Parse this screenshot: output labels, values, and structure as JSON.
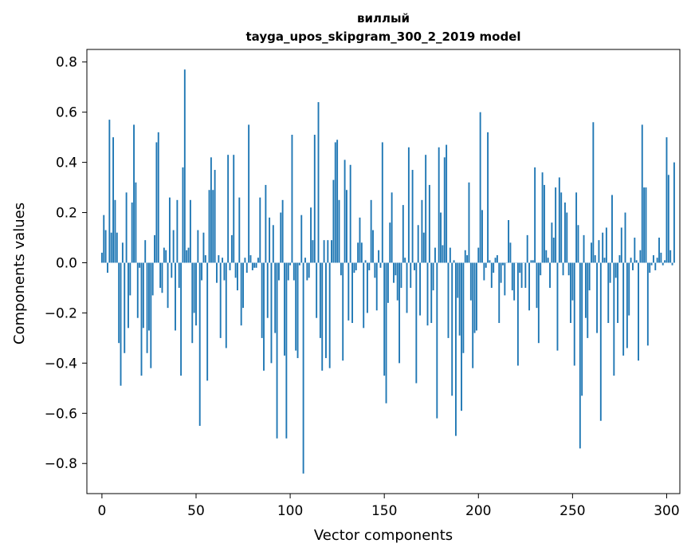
{
  "chart_data": {
    "type": "bar",
    "title": "виллый",
    "subtitle": "tayga_upos_skipgram_300_2_2019 model",
    "xlabel": "Vector components",
    "ylabel": "Components values",
    "xlim": [
      -8,
      307
    ],
    "ylim": [
      -0.92,
      0.85
    ],
    "xticks": [
      0,
      50,
      100,
      150,
      200,
      250,
      300
    ],
    "yticks": [
      -0.8,
      -0.6,
      -0.4,
      -0.2,
      0.0,
      0.2,
      0.4,
      0.6,
      0.8
    ],
    "ytick_labels": [
      "−0.8",
      "−0.6",
      "−0.4",
      "−0.2",
      "0.0",
      "0.2",
      "0.4",
      "0.6",
      "0.8"
    ],
    "bar_color": "#1f77b4",
    "grid": false,
    "values": [
      0.04,
      0.19,
      0.13,
      -0.04,
      0.57,
      0.12,
      0.5,
      0.25,
      0.12,
      -0.32,
      -0.49,
      0.08,
      -0.36,
      0.28,
      -0.26,
      -0.13,
      0.24,
      0.55,
      0.32,
      -0.22,
      -0.02,
      -0.45,
      -0.26,
      0.09,
      -0.36,
      -0.27,
      -0.42,
      -0.13,
      0.11,
      0.48,
      0.52,
      -0.1,
      -0.12,
      0.06,
      0.05,
      -0.18,
      0.26,
      -0.06,
      0.13,
      -0.27,
      0.25,
      -0.1,
      -0.45,
      0.38,
      0.77,
      0.05,
      0.06,
      0.25,
      -0.32,
      -0.2,
      -0.25,
      0.13,
      -0.65,
      -0.07,
      0.12,
      0.03,
      -0.47,
      0.29,
      0.42,
      0.29,
      0.37,
      -0.08,
      0.03,
      -0.3,
      0.02,
      -0.07,
      -0.34,
      0.43,
      -0.03,
      0.11,
      0.43,
      -0.06,
      -0.11,
      0.26,
      -0.25,
      -0.18,
      0.02,
      -0.04,
      0.55,
      0.03,
      -0.03,
      -0.02,
      -0.02,
      0.02,
      0.26,
      -0.3,
      -0.43,
      0.31,
      -0.22,
      0.18,
      -0.4,
      0.15,
      -0.28,
      -0.7,
      -0.07,
      0.2,
      0.25,
      -0.37,
      -0.7,
      -0.07,
      -0.01,
      0.51,
      -0.07,
      -0.35,
      -0.38,
      -0.01,
      0.19,
      -0.84,
      0.02,
      -0.07,
      -0.06,
      0.22,
      0.09,
      0.51,
      -0.22,
      0.64,
      -0.3,
      -0.43,
      0.09,
      -0.38,
      0.09,
      -0.42,
      0.09,
      0.33,
      0.48,
      0.49,
      0.25,
      -0.05,
      -0.39,
      0.41,
      0.29,
      -0.23,
      0.39,
      -0.24,
      -0.04,
      -0.03,
      0.08,
      0.18,
      0.08,
      -0.26,
      0.01,
      -0.2,
      -0.03,
      0.25,
      0.13,
      -0.06,
      -0.19,
      0.05,
      -0.02,
      0.48,
      -0.45,
      -0.56,
      -0.16,
      0.16,
      0.28,
      -0.08,
      -0.05,
      -0.15,
      -0.4,
      -0.1,
      0.23,
      0.02,
      -0.2,
      0.46,
      -0.1,
      0.37,
      -0.03,
      -0.48,
      0.15,
      -0.21,
      0.25,
      0.12,
      0.43,
      -0.25,
      0.31,
      -0.24,
      -0.11,
      0.06,
      -0.62,
      0.46,
      0.2,
      0.07,
      0.42,
      0.47,
      -0.3,
      0.06,
      -0.53,
      0.01,
      -0.69,
      -0.14,
      -0.29,
      -0.59,
      -0.36,
      0.05,
      0.03,
      0.32,
      -0.15,
      -0.42,
      -0.28,
      -0.27,
      0.06,
      0.6,
      0.21,
      -0.07,
      -0.02,
      0.52,
      0.01,
      -0.1,
      -0.04,
      0.02,
      0.03,
      -0.24,
      -0.08,
      -0.01,
      -0.13,
      0.0,
      0.17,
      0.08,
      -0.11,
      -0.15,
      0.0,
      -0.41,
      -0.04,
      -0.1,
      0.0,
      -0.1,
      0.11,
      -0.19,
      0.01,
      0.01,
      0.38,
      -0.18,
      -0.32,
      -0.05,
      0.36,
      0.31,
      0.05,
      0.02,
      -0.1,
      0.16,
      0.1,
      0.3,
      -0.35,
      0.34,
      0.28,
      -0.05,
      0.24,
      0.2,
      -0.05,
      -0.24,
      -0.15,
      -0.41,
      0.28,
      0.15,
      -0.74,
      -0.53,
      0.11,
      -0.22,
      -0.3,
      -0.11,
      0.08,
      0.56,
      0.03,
      -0.28,
      0.09,
      -0.63,
      0.12,
      0.02,
      0.14,
      -0.24,
      -0.08,
      0.27,
      -0.45,
      -0.06,
      -0.24,
      0.03,
      0.14,
      -0.37,
      0.2,
      -0.34,
      -0.21,
      0.02,
      -0.03,
      0.1,
      0.01,
      -0.39,
      0.05,
      0.55,
      0.3,
      0.3,
      -0.33,
      -0.04,
      -0.01,
      0.03,
      -0.03,
      0.02,
      0.1,
      0.04,
      -0.01,
      0.01,
      0.5,
      0.35,
      0.05,
      -0.01,
      0.4
    ]
  }
}
